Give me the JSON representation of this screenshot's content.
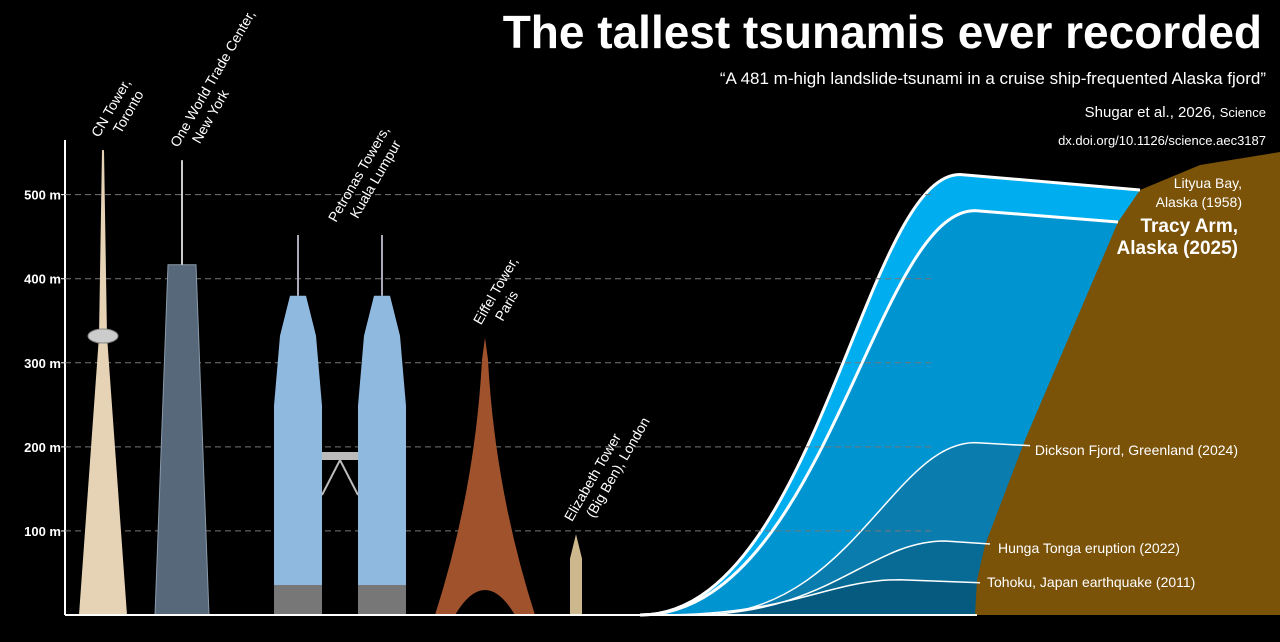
{
  "chart_data": {
    "type": "comparison",
    "title": "The tallest tsunamis ever recorded",
    "subtitle": "“A 481 m-high landslide-tsunami in a cruise ship-frequented Alaska fjord”",
    "citation": [
      "Shugar et al., 2026, ",
      "Science"
    ],
    "doi": "dx.doi.org/10.1126/science.aec3187",
    "ylim": [
      0,
      565
    ],
    "yticks": [
      {
        "value": 100,
        "label": "100 m"
      },
      {
        "value": 200,
        "label": "200 m"
      },
      {
        "value": 300,
        "label": "300 m"
      },
      {
        "value": 400,
        "label": "400 m"
      },
      {
        "value": 500,
        "label": "500 m"
      }
    ],
    "grid": true,
    "buildings": [
      {
        "label": [
          "CN Tower,",
          "Toronto"
        ],
        "value": 553
      },
      {
        "label": [
          "One World Trade Center,",
          "New York"
        ],
        "value": 541
      },
      {
        "label": [
          "Petronas Towers,",
          "Kuala Lumpur"
        ],
        "value": 452
      },
      {
        "label": [
          "Eiffel Tower,",
          "Paris"
        ],
        "value": 330
      },
      {
        "label": [
          "Elizabeth Tower",
          "(Big Ben), London"
        ],
        "value": 96
      }
    ],
    "tsunamis": [
      {
        "label": [
          "Lityua Bay,",
          "Alaska (1958)"
        ],
        "value": 524,
        "color": "#00aeef"
      },
      {
        "label": [
          "Tracy Arm,",
          "Alaska (2025)"
        ],
        "value": 481,
        "color": "#0094d0"
      },
      {
        "label": [
          "Dickson Fjord, Greenland (2024)"
        ],
        "value": 205,
        "color": "#0a7cae"
      },
      {
        "label": [
          "Hunga Tonga eruption (2022)"
        ],
        "value": 88,
        "color": "#086b96"
      },
      {
        "label": [
          "Tohoku, Japan earthquake (2011)"
        ],
        "value": 42,
        "color": "#065a80"
      }
    ]
  }
}
